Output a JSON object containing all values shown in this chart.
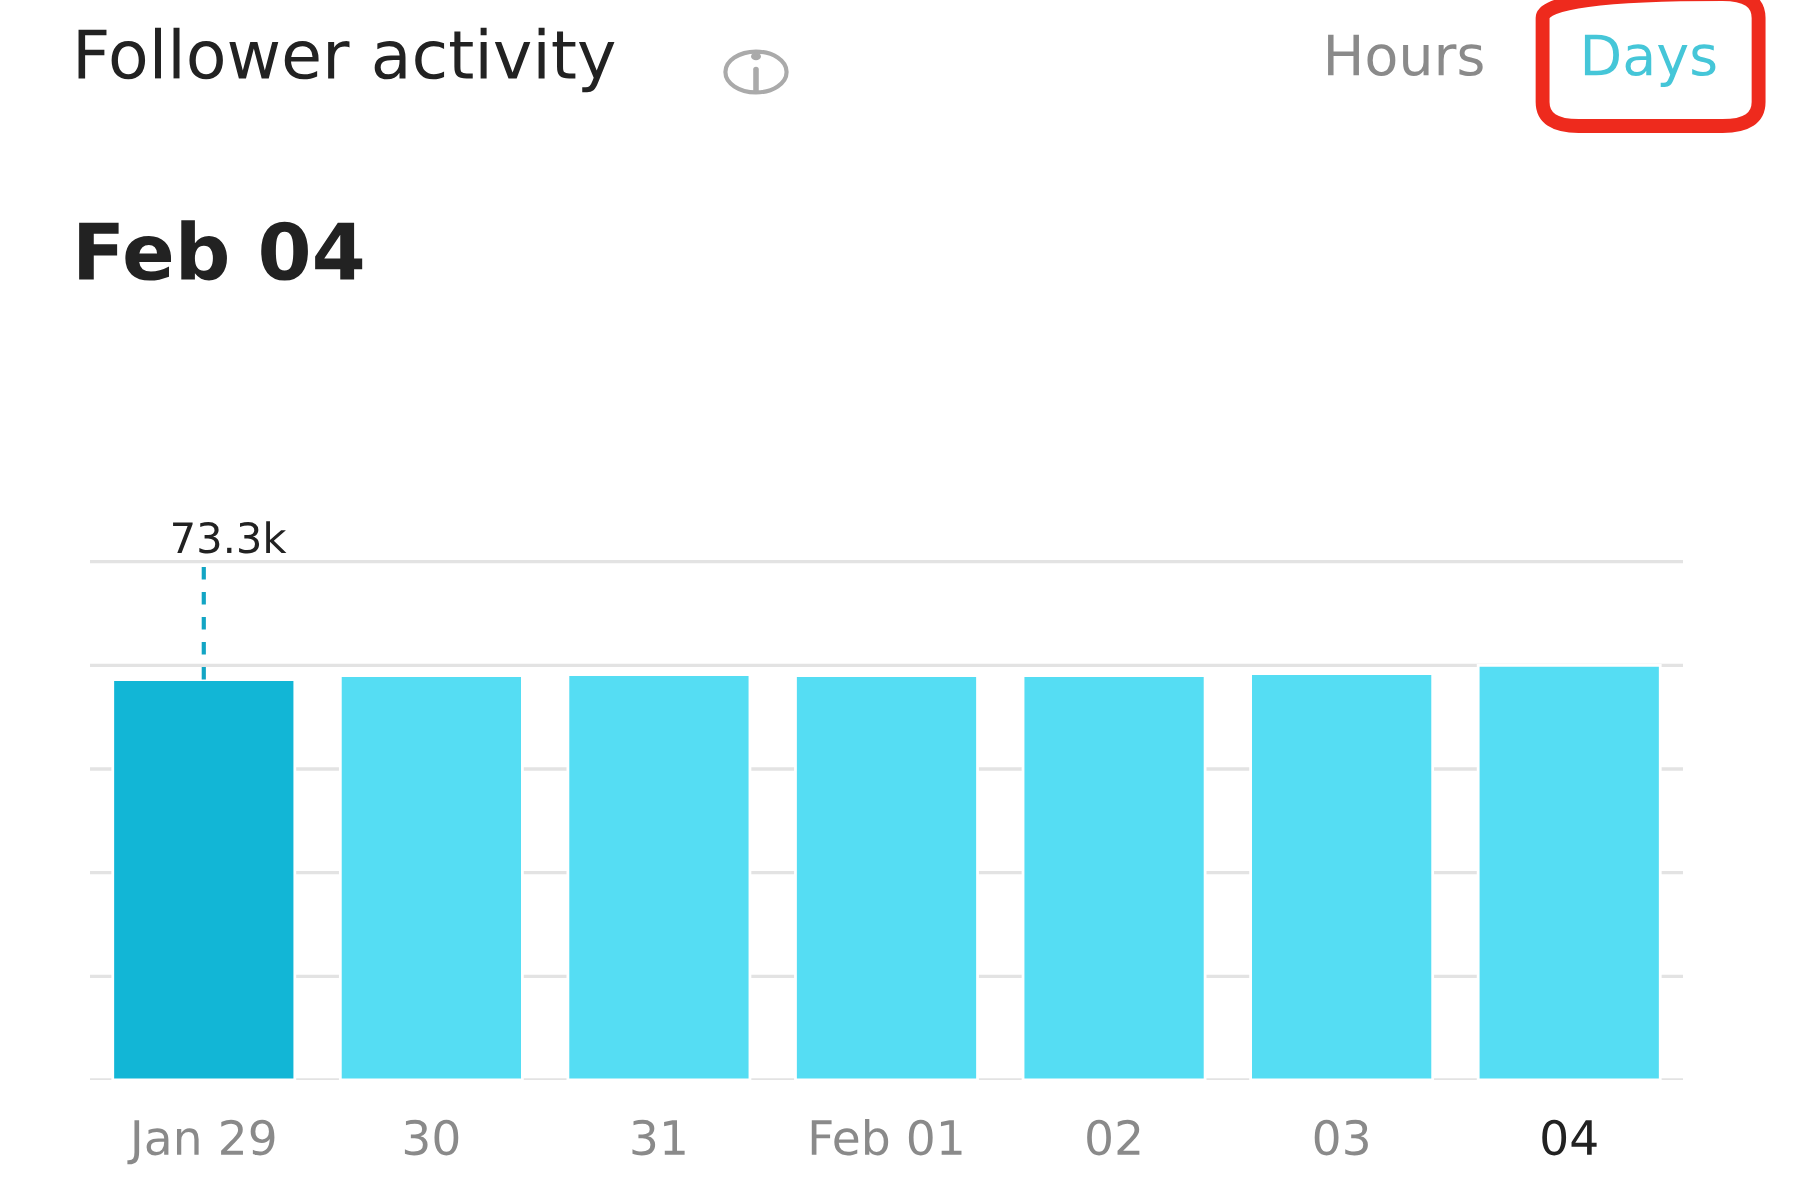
{
  "chart_data": {
    "type": "bar",
    "title": "Follower activity",
    "subtitle": "Feb 04",
    "annotations": [
      "Hours",
      "Days"
    ],
    "categories": [
      "Jan 29",
      "30",
      "31",
      "Feb 01",
      "02",
      "03",
      "04"
    ],
    "values": [
      73300,
      74000,
      74200,
      74000,
      74000,
      74400,
      75900
    ],
    "colors": [
      "#12b6d6",
      "#55ddf3",
      "#55ddf3",
      "#55ddf3",
      "#55ddf3",
      "#55ddf3",
      "#55ddf3"
    ],
    "value_labels": [
      "73.3k",
      null,
      null,
      null,
      null,
      null,
      null
    ],
    "grid": "y"
  }
}
